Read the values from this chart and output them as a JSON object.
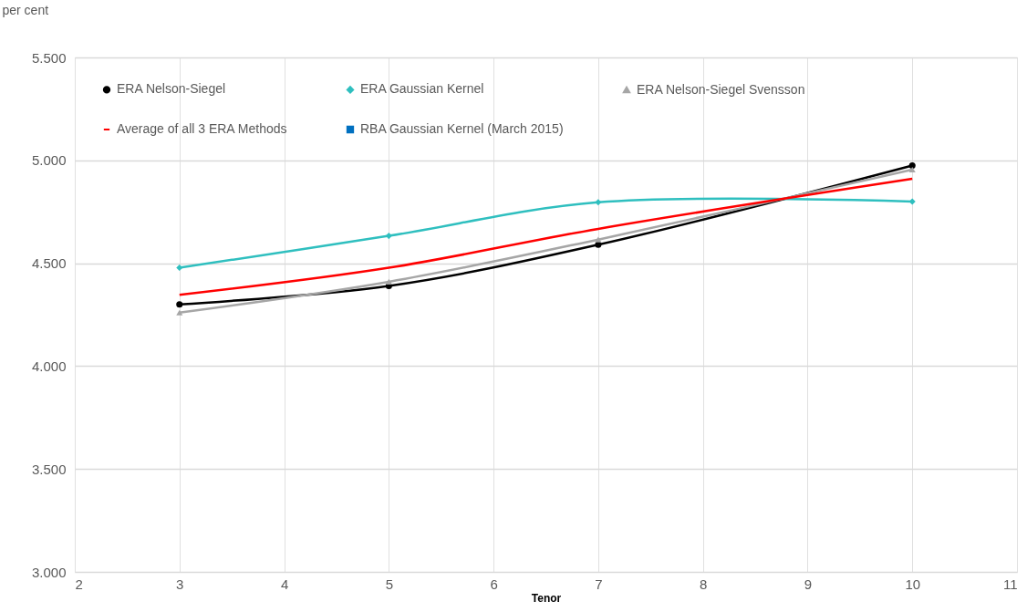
{
  "chart_data": {
    "type": "line",
    "ylabel": "per cent",
    "xlabel": "Tenor",
    "xlim": [
      2,
      11
    ],
    "xticks": [
      2,
      3,
      4,
      5,
      6,
      7,
      8,
      9,
      10,
      11
    ],
    "ylim": [
      3,
      5.5
    ],
    "yticks": [
      {
        "value": 3,
        "label": "3.000"
      },
      {
        "value": 3.5,
        "label": "3.500"
      },
      {
        "value": 4,
        "label": "4.000"
      },
      {
        "value": 4.5,
        "label": "4.500"
      },
      {
        "value": 5,
        "label": "5.000"
      },
      {
        "value": 5.5,
        "label": "5.500"
      }
    ],
    "grid": true,
    "legend": "top left",
    "line_style": "solid",
    "series": [
      {
        "name": "ERA Nelson-Siegel",
        "color": "#000000",
        "marker": "circle",
        "x": [
          3,
          5,
          7,
          10
        ],
        "values": [
          4.3,
          4.39,
          4.59,
          4.975
        ]
      },
      {
        "name": "ERA Gaussian Kernel",
        "color": "#2fbfbf",
        "marker": "diamond",
        "x": [
          3,
          5,
          7,
          10
        ],
        "values": [
          4.478,
          4.633,
          4.796,
          4.8
        ]
      },
      {
        "name": "ERA Nelson-Siegel Svensson",
        "color": "#a6a6a6",
        "marker": "triangle",
        "x": [
          3,
          5,
          7,
          10
        ],
        "values": [
          4.26,
          4.41,
          4.615,
          4.955
        ]
      },
      {
        "name": "Average of all 3 ERA Methods",
        "color": "#ff0000",
        "marker": "none",
        "x": [
          3,
          5,
          7,
          10
        ],
        "values": [
          4.346,
          4.478,
          4.667,
          4.91
        ]
      },
      {
        "name": "RBA Gaussian Kernel (March 2015)",
        "color": "#0070c0",
        "marker": "square"
      }
    ]
  }
}
